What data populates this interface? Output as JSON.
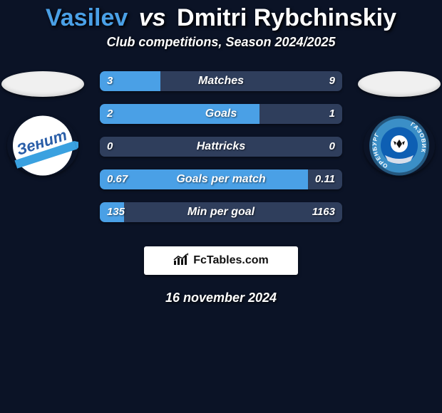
{
  "title": {
    "player1": "Vasilev",
    "vs": "vs",
    "player2": "Dmitri Rybchinskiy",
    "player1_color": "#4aa0e6",
    "player2_color": "#ffffff"
  },
  "subtitle": "Club competitions, Season 2024/2025",
  "colors": {
    "background": "#0b1326",
    "bar_left": "#4aa0e6",
    "bar_right": "#2f3e5c",
    "neutral_bar": "#2f3e5c",
    "text": "#ffffff"
  },
  "avatars": {
    "left_oval": "#f0f0f0",
    "right_oval": "#f0f0f0"
  },
  "crests": {
    "left": {
      "name": "zenit-crest",
      "bg": "#ffffff",
      "stripe": "#3aa1e0",
      "text": "Зенит",
      "text_color": "#2a5ea8"
    },
    "right": {
      "name": "orenburg-crest",
      "ring_outer": "#24577e",
      "ring_inner": "#3b8fc7",
      "center": "#0e5fb3",
      "ball": "#ffffff",
      "ribbon": "#d7deea",
      "ring_text": "ГАЗОВИК · ОРЕНБУРГ"
    }
  },
  "stats": [
    {
      "label": "Matches",
      "left_val": "3",
      "right_val": "9",
      "left_pct": 25,
      "right_pct": 75
    },
    {
      "label": "Goals",
      "left_val": "2",
      "right_val": "1",
      "left_pct": 66,
      "right_pct": 34
    },
    {
      "label": "Hattricks",
      "left_val": "0",
      "right_val": "0",
      "left_pct": 0,
      "right_pct": 0
    },
    {
      "label": "Goals per match",
      "left_val": "0.67",
      "right_val": "0.11",
      "left_pct": 86,
      "right_pct": 14
    },
    {
      "label": "Min per goal",
      "left_val": "135",
      "right_val": "1163",
      "left_pct": 10,
      "right_pct": 90
    }
  ],
  "brand": {
    "icon": "chart-icon",
    "text": "FcTables.com"
  },
  "date": "16 november 2024"
}
